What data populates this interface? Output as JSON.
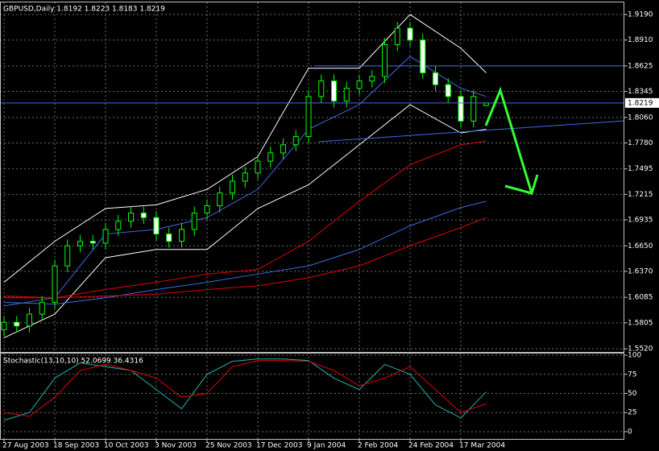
{
  "chart_data": [
    {
      "type": "candlestick",
      "title": "GBPUSD,Daily  1.8192 1.8223 1.8183 1.8219",
      "categories": [
        "27 Aug 2003",
        null,
        null,
        null,
        "18 Sep 2003",
        null,
        null,
        null,
        "10 Oct 2003",
        null,
        null,
        null,
        "3 Nov 2003",
        null,
        null,
        null,
        "25 Nov 2003",
        null,
        null,
        null,
        "17 Dec 2003",
        null,
        null,
        null,
        "9 Jan 2004",
        null,
        null,
        null,
        "2 Feb 2004",
        null,
        null,
        null,
        "24 Feb 2004",
        null,
        null,
        null,
        "17 Mar 2004",
        null,
        null
      ],
      "open": [
        1.573,
        1.581,
        1.577,
        1.59,
        1.603,
        1.643,
        1.665,
        1.67,
        1.668,
        1.683,
        1.692,
        1.701,
        1.696,
        1.678,
        1.67,
        1.683,
        1.701,
        1.709,
        1.723,
        1.736,
        1.745,
        1.758,
        1.767,
        1.776,
        1.785,
        1.829,
        1.846,
        1.824,
        1.838,
        1.846,
        1.851,
        1.886,
        1.904,
        1.891,
        1.855,
        1.842,
        1.829,
        1.802,
        1.8192
      ],
      "high": [
        1.588,
        1.588,
        1.597,
        1.61,
        1.65,
        1.672,
        1.677,
        1.677,
        1.69,
        1.699,
        1.708,
        1.708,
        1.703,
        1.685,
        1.69,
        1.708,
        1.716,
        1.73,
        1.743,
        1.752,
        1.765,
        1.774,
        1.783,
        1.792,
        1.836,
        1.853,
        1.853,
        1.845,
        1.853,
        1.858,
        1.893,
        1.911,
        1.911,
        1.898,
        1.862,
        1.849,
        1.836,
        1.836,
        1.8223
      ],
      "low": [
        1.566,
        1.57,
        1.57,
        1.583,
        1.596,
        1.636,
        1.658,
        1.661,
        1.661,
        1.676,
        1.685,
        1.689,
        1.671,
        1.663,
        1.663,
        1.676,
        1.694,
        1.702,
        1.716,
        1.729,
        1.738,
        1.751,
        1.76,
        1.769,
        1.778,
        1.822,
        1.817,
        1.817,
        1.831,
        1.839,
        1.844,
        1.879,
        1.884,
        1.848,
        1.835,
        1.822,
        1.795,
        1.795,
        1.8183
      ],
      "close": [
        1.581,
        1.577,
        1.59,
        1.603,
        1.643,
        1.665,
        1.67,
        1.668,
        1.683,
        1.692,
        1.701,
        1.696,
        1.678,
        1.67,
        1.683,
        1.701,
        1.709,
        1.723,
        1.736,
        1.745,
        1.758,
        1.767,
        1.776,
        1.785,
        1.829,
        1.846,
        1.824,
        1.838,
        1.846,
        1.851,
        1.886,
        1.904,
        1.891,
        1.855,
        1.842,
        1.829,
        1.802,
        1.829,
        1.8219
      ],
      "up_color": "#00ff00",
      "down_color": "#00ff00",
      "series": [
        {
          "color": "#ffffff",
          "x": [
            0,
            4,
            8,
            12,
            16,
            20,
            24,
            28,
            32,
            36,
            38
          ],
          "values": [
            1.625,
            1.67,
            1.706,
            1.71,
            1.727,
            1.763,
            1.86,
            1.86,
            1.919,
            1.882,
            1.855
          ]
        },
        {
          "color": "#ffffff",
          "x": [
            0,
            4,
            8,
            12,
            16,
            20,
            24,
            28,
            32,
            36,
            38
          ],
          "values": [
            1.564,
            1.59,
            1.652,
            1.661,
            1.661,
            1.706,
            1.732,
            1.776,
            1.82,
            1.789,
            1.793
          ]
        },
        {
          "color": "#4169e1",
          "x": [
            0,
            4,
            8,
            12,
            16,
            20,
            24,
            28,
            32,
            36,
            38
          ],
          "values": [
            1.599,
            1.608,
            1.678,
            1.683,
            1.696,
            1.727,
            1.793,
            1.82,
            1.873,
            1.838,
            1.829
          ]
        },
        {
          "color": "#e00000",
          "x": [
            0,
            4,
            8,
            12,
            16,
            20,
            24,
            28,
            32,
            36,
            38
          ],
          "values": [
            1.608,
            1.608,
            1.617,
            1.625,
            1.634,
            1.639,
            1.67,
            1.714,
            1.754,
            1.776,
            1.78
          ]
        },
        {
          "color": "#4169e1",
          "x": [
            0,
            4,
            8,
            12,
            16,
            20,
            24,
            28,
            32,
            36,
            38
          ],
          "values": [
            1.603,
            1.601,
            1.608,
            1.617,
            1.625,
            1.634,
            1.643,
            1.661,
            1.687,
            1.707,
            1.714
          ]
        },
        {
          "color": "#e00000",
          "x": [
            0,
            4,
            8,
            12,
            16,
            20,
            24,
            28,
            32,
            36,
            38
          ],
          "values": [
            1.61,
            1.608,
            1.61,
            1.612,
            1.617,
            1.621,
            1.63,
            1.643,
            1.665,
            1.685,
            1.696
          ]
        }
      ],
      "trendlines": [
        {
          "color": "#4169e1",
          "x": [
            24.5,
            48.9
          ],
          "values": [
            1.8625,
            1.8625
          ]
        },
        {
          "color": "#4169e1",
          "x": [
            24.8,
            48.9
          ],
          "values": [
            1.7793,
            1.8023
          ]
        }
      ],
      "current_price": 1.8219,
      "current_price_color": "#4169e1",
      "ylim": [
        1.5485,
        1.9323
      ],
      "yticks": [
        {
          "value": 1.919,
          "label": "1.9190"
        },
        {
          "value": 1.891,
          "label": "1.8910"
        },
        1.8625,
        1.8345,
        {
          "value": 1.806,
          "label": "1.8060"
        },
        {
          "value": 1.778,
          "label": "1.7780"
        },
        1.7495,
        1.7215,
        1.6935,
        {
          "value": 1.665,
          "label": "1.6650"
        },
        {
          "value": 1.637,
          "label": "1.6370"
        },
        1.6085,
        1.5805,
        {
          "value": 1.552,
          "label": "1.5520"
        }
      ],
      "grid": true
    },
    {
      "type": "line",
      "title": "Stochastic(13,10,10) 52.0699 36.4316",
      "series": [
        {
          "color": "#20b2aa",
          "x": [
            0,
            2,
            4,
            6,
            8,
            10,
            12,
            14,
            16,
            18,
            20,
            22,
            24,
            26,
            28,
            30,
            32,
            34,
            36,
            38
          ],
          "values": [
            15,
            25,
            70,
            90,
            85,
            80,
            55,
            30,
            75,
            92,
            95,
            95,
            93,
            70,
            55,
            88,
            75,
            35,
            18,
            52.0699
          ]
        },
        {
          "color": "#e00000",
          "x": [
            0,
            2,
            4,
            6,
            8,
            10,
            12,
            14,
            16,
            18,
            20,
            22,
            24,
            26,
            28,
            30,
            32,
            34,
            36,
            38
          ],
          "values": [
            25,
            20,
            45,
            80,
            88,
            80,
            70,
            45,
            50,
            85,
            93,
            93,
            92,
            80,
            60,
            70,
            85,
            55,
            25,
            36.4316
          ]
        }
      ],
      "ylim": [
        -9.5,
        103.2
      ],
      "yticks": [
        0,
        25,
        50,
        75,
        100
      ],
      "grid": true
    }
  ]
}
